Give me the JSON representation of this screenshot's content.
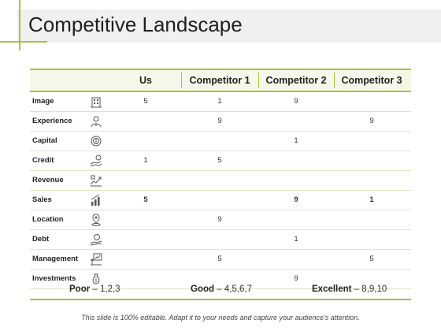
{
  "slide": {
    "title": "Competitive Landscape",
    "footer": "This slide is 100% editable. Adapt it to your needs and capture your audience's attention."
  },
  "table": {
    "headers": [
      "Us",
      "Competitor 1",
      "Competitor 2",
      "Competitor 3"
    ],
    "rows": [
      {
        "label": "Image",
        "icon": "building-icon",
        "us": "5",
        "c1": "1",
        "c2": "9",
        "c3": ""
      },
      {
        "label": "Experience",
        "icon": "person-icon",
        "us": "",
        "c1": "9",
        "c2": "",
        "c3": "9"
      },
      {
        "label": "Capital",
        "icon": "coin-icon",
        "us": "",
        "c1": "",
        "c2": "1",
        "c3": ""
      },
      {
        "label": "Credit",
        "icon": "hand-coin-icon",
        "us": "1",
        "c1": "5",
        "c2": "",
        "c3": ""
      },
      {
        "label": "Revenue",
        "icon": "revenue-chart-icon",
        "us": "",
        "c1": "",
        "c2": "",
        "c3": ""
      },
      {
        "label": "Sales",
        "icon": "bar-chart-icon",
        "us": "5",
        "c1": "",
        "c2": "9",
        "c3": "1"
      },
      {
        "label": "Location",
        "icon": "location-pin-icon",
        "us": "",
        "c1": "9",
        "c2": "",
        "c3": ""
      },
      {
        "label": "Debt",
        "icon": "hand-money-icon",
        "us": "",
        "c1": "",
        "c2": "1",
        "c3": ""
      },
      {
        "label": "Management",
        "icon": "presentation-board-icon",
        "us": "",
        "c1": "5",
        "c2": "",
        "c3": "5"
      },
      {
        "label": "Investments",
        "icon": "money-bag-icon",
        "us": "",
        "c1": "",
        "c2": "9",
        "c3": ""
      }
    ]
  },
  "legend": {
    "poor_label": "Poor",
    "poor_values": "– 1,2,3",
    "good_label": "Good",
    "good_values": "– 4,5,6,7",
    "excellent_label": "Excellent",
    "excellent_values": "– 8,9,10"
  },
  "colors": {
    "accent": "#a7c23a",
    "header_bg": "#f5f8e8",
    "title_band": "#f0f0f0"
  }
}
